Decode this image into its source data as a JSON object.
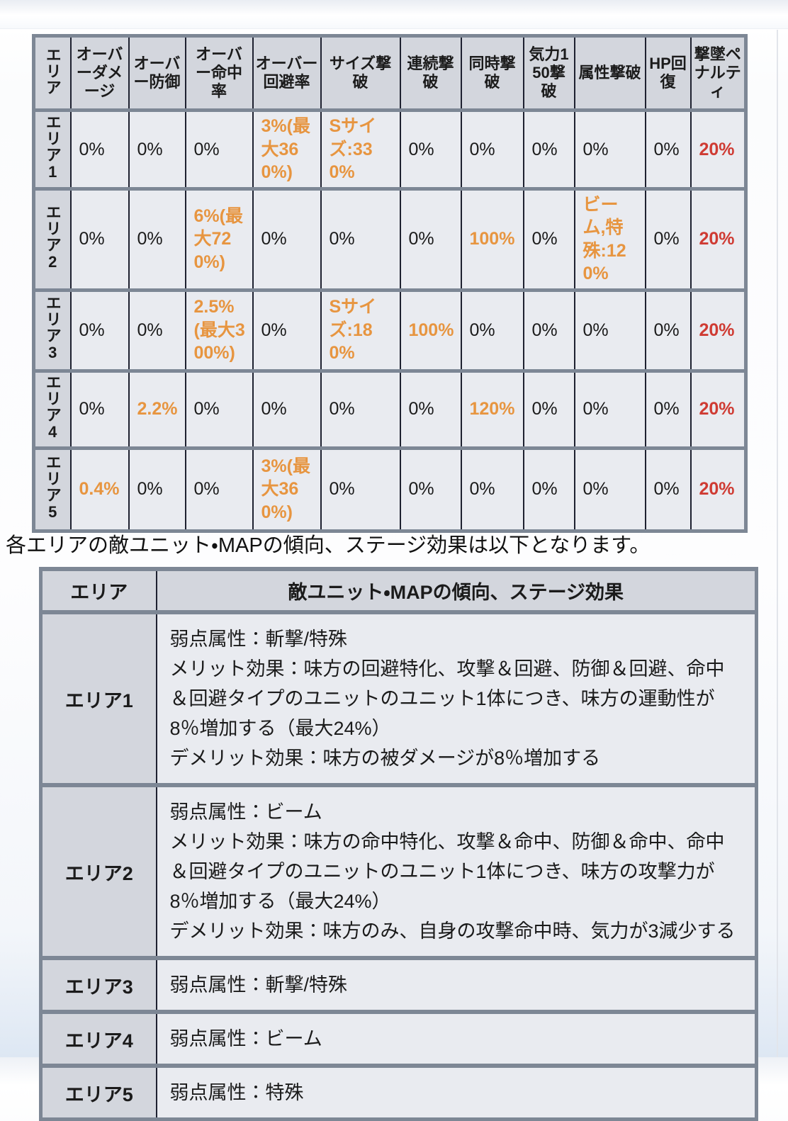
{
  "page": {
    "intro_text": "各エリアの敵ユニット・MAPの傾向、ステージ効果は以下となります。"
  },
  "colors": {
    "accent_orange": "#e79540",
    "accent_red": "#cf3b33",
    "header_bg": "#d3d6dd",
    "cell_bg": "#e9ebf0",
    "border_gray": "#7d8795",
    "line_dark": "#1e2130"
  },
  "stats_table": {
    "area_header": "エリア",
    "columns": [
      "オーバーダメージ",
      "オーバー防御",
      "オーバー命中率",
      "オーバー回避率",
      "サイズ撃破",
      "連続撃破",
      "同時撃破",
      "気力150撃破",
      "属性撃破",
      "HP回復",
      "撃墜ペナルティ"
    ],
    "rows": [
      {
        "area": "エリア1",
        "cells": [
          {
            "text": "0%"
          },
          {
            "text": "0%"
          },
          {
            "text": "0%"
          },
          {
            "text": "3%(最大360%)",
            "color": "orange"
          },
          {
            "text": "Sサイズ:330%",
            "color": "orange"
          },
          {
            "text": "0%"
          },
          {
            "text": "0%"
          },
          {
            "text": "0%"
          },
          {
            "text": "0%"
          },
          {
            "text": "0%"
          },
          {
            "text": "20%",
            "color": "red"
          }
        ]
      },
      {
        "area": "エリア2",
        "cells": [
          {
            "text": "0%"
          },
          {
            "text": "0%"
          },
          {
            "text": "6%(最大720%)",
            "color": "orange"
          },
          {
            "text": "0%"
          },
          {
            "text": "0%"
          },
          {
            "text": "0%"
          },
          {
            "text": "100%",
            "color": "orange"
          },
          {
            "text": "0%"
          },
          {
            "text": "ビーム,特殊:120%",
            "color": "orange"
          },
          {
            "text": "0%"
          },
          {
            "text": "20%",
            "color": "red"
          }
        ]
      },
      {
        "area": "エリア3",
        "cells": [
          {
            "text": "0%"
          },
          {
            "text": "0%"
          },
          {
            "text": "2.5%(最大300%)",
            "color": "orange"
          },
          {
            "text": "0%"
          },
          {
            "text": "Sサイズ:180%",
            "color": "orange"
          },
          {
            "text": "100%",
            "color": "orange"
          },
          {
            "text": "0%"
          },
          {
            "text": "0%"
          },
          {
            "text": "0%"
          },
          {
            "text": "0%"
          },
          {
            "text": "20%",
            "color": "red"
          }
        ]
      },
      {
        "area": "エリア4",
        "cells": [
          {
            "text": "0%"
          },
          {
            "text": "2.2%",
            "color": "orange"
          },
          {
            "text": "0%"
          },
          {
            "text": "0%"
          },
          {
            "text": "0%"
          },
          {
            "text": "0%"
          },
          {
            "text": "120%",
            "color": "orange"
          },
          {
            "text": "0%"
          },
          {
            "text": "0%"
          },
          {
            "text": "0%"
          },
          {
            "text": "20%",
            "color": "red"
          }
        ]
      },
      {
        "area": "エリア5",
        "cells": [
          {
            "text": "0.4%",
            "color": "orange"
          },
          {
            "text": "0%"
          },
          {
            "text": "0%"
          },
          {
            "text": "3%(最大360%)",
            "color": "orange"
          },
          {
            "text": "0%"
          },
          {
            "text": "0%"
          },
          {
            "text": "0%"
          },
          {
            "text": "0%"
          },
          {
            "text": "0%"
          },
          {
            "text": "0%"
          },
          {
            "text": "20%",
            "color": "red"
          }
        ]
      }
    ]
  },
  "effects_table": {
    "headers": [
      "エリア",
      "敵ユニット・MAPの傾向、ステージ効果"
    ],
    "rows": [
      {
        "area": "エリア1",
        "text": "弱点属性：斬撃/特殊\nメリット効果：味方の回避特化、攻撃＆回避、防御＆回避、命中＆回避タイプのユニットのユニット1体につき、味方の運動性が8％増加する（最大24%）\nデメリット効果：味方の被ダメージが8％増加する"
      },
      {
        "area": "エリア2",
        "text": "弱点属性：ビーム\nメリット効果：味方の命中特化、攻撃＆命中、防御＆命中、命中＆回避タイプのユニットのユニット1体につき、味方の攻撃力が8％増加する（最大24%）\nデメリット効果：味方のみ、自身の攻撃命中時、気力が3減少する"
      },
      {
        "area": "エリア3",
        "text": "弱点属性：斬撃/特殊"
      },
      {
        "area": "エリア4",
        "text": "弱点属性：ビーム"
      },
      {
        "area": "エリア5",
        "text": "弱点属性：特殊"
      }
    ]
  }
}
